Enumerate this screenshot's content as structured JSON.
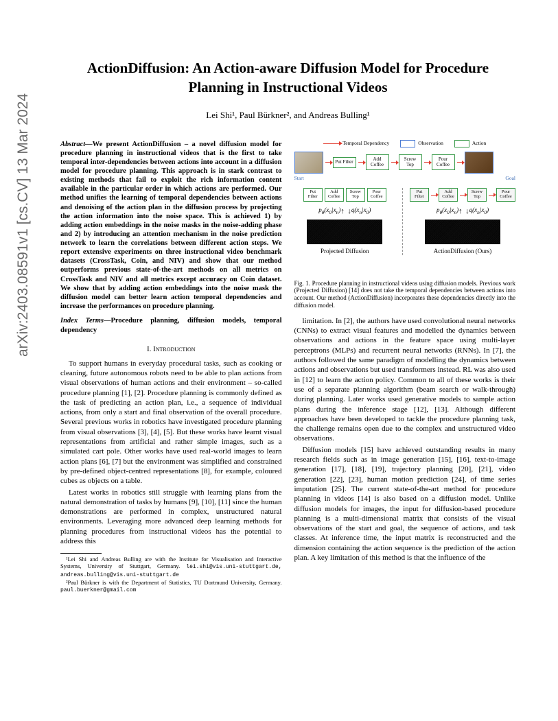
{
  "arxiv": "arXiv:2403.08591v1  [cs.CV]  13 Mar 2024",
  "title": "ActionDiffusion: An Action-aware Diffusion Model for Procedure Planning in Instructional Videos",
  "authors_html": "Lei Shi¹, Paul Bürkner², and Andreas Bulling¹",
  "abstract_lead": "Abstract—",
  "abstract": "We present ActionDiffusion – a novel diffusion model for procedure planning in instructional videos that is the first to take temporal inter-dependencies between actions into account in a diffusion model for procedure planning. This approach is in stark contrast to existing methods that fail to exploit the rich information content available in the particular order in which actions are performed. Our method unifies the learning of temporal dependencies between actions and denoising of the action plan in the diffusion process by projecting the action information into the noise space. This is achieved 1) by adding action embeddings in the noise masks in the noise-adding phase and 2) by introducing an attention mechanism in the noise prediction network to learn the correlations between different action steps. We report extensive experiments on three instructional video benchmark datasets (CrossTask, Coin, and NIV) and show that our method outperforms previous state-of-the-art methods on all metrics on CrossTask and NIV and all metrics except accuracy on Coin dataset. We show that by adding action embeddings into the noise mask the diffusion model can better learn action temporal dependencies and increase the performances on procedure planning.",
  "index_lead": "Index Terms—",
  "index_terms": "Procedure planning, diffusion models, temporal dependency",
  "section1": "I.  Introduction",
  "para1": "To support humans in everyday procedural tasks, such as cooking or cleaning, future autonomous robots need to be able to plan actions from visual observations of human actions and their environment – so-called procedure planning [1], [2]. Procedure planning is commonly defined as the task of predicting an action plan, i.e., a sequence of individual actions, from only a start and final observation of the overall procedure. Several previous works in robotics have investigated procedure planning from visual observations [3], [4], [5]. But these works have learnt visual representations from artificial and rather simple images, such as a simulated cart pole. Other works have used real-world images to learn action plans [6], [7] but the environment was simplified and constrained by pre-defined object-centred representations [8], for example, coloured cubes as objects on a table.",
  "para2": "Latest works in robotics still struggle with learning plans from the natural demonstration of tasks by humans [9], [10], [11] since the human demonstrations are performed in complex, unstructured natural environments. Leveraging more advanced deep learning methods for planning procedures from instructional videos has the potential to address this",
  "fn1": "¹Lei Shi and Andreas Bulling are with the Institute for Visualisation and Interactive Systems, University of Stuttgart, Germany. ",
  "fn1_email": "lei.shi@vis.uni-stuttgart.de, andreas.bulling@vis.uni-stuttgart.de",
  "fn2": "²Paul Bürkner is with the Department of Statistics, TU Dortmund University, Germany. ",
  "fn2_email": "paul.buerkner@gmail.com",
  "legend": {
    "temporal": "Temporal Dependency",
    "observation": "Observation",
    "action": "Action"
  },
  "actions": [
    "Put Filter",
    "Add Coffee",
    "Screw Top",
    "Pour Coffee"
  ],
  "start": "Start",
  "goal": "Goal",
  "math_left": "p_θ(x₀|xₙ)↑  ↓q(xₙ|x₀)",
  "math_right": "p_θ(x₀|xₙ)↑  ↓q(xₙ|x₀)",
  "proj_label": "Projected Diffusion",
  "ours_label": "ActionDiffusion (Ours)",
  "figcaption": "Fig. 1.   Procedure planning in instructional videos using diffusion models. Previous work (Projected Diffusion) [14] does not take the temporal dependencies between actions into account. Our method (ActionDiffusion) incorporates these dependencies directly into the diffusion model.",
  "rcol_p1": "limitation. In [2], the authors have used convolutional neural networks (CNNs) to extract visual features and modelled the dynamics between observations and actions in the feature space using multi-layer perceptrons (MLPs) and recurrent neural networks (RNNs). In [7], the authors followed the same paradigm of modelling the dynamics between actions and observations but used transformers instead. RL was also used in [12] to learn the action policy. Common to all of these works is their use of a separate planning algorithm (beam search or walk-through) during planning. Later works used generative models to sample action plans during the inference stage [12], [13]. Although different approaches have been developed to tackle the procedure planning task, the challenge remains open due to the complex and unstructured video observations.",
  "rcol_p2": "Diffusion models [15] have achieved outstanding results in many research fields such as in image generation [15], [16], text-to-image generation [17], [18], [19], trajectory planning [20], [21], video generation [22], [23], human motion prediction [24], of time series imputation [25]. The current state-of-the-art method for procedure planning in videos [14] is also based on a diffusion model. Unlike diffusion models for images, the input for diffusion-based procedure planning is a multi-dimensional matrix that consists of the visual observations of the start and goal, the sequence of actions, and task classes. At inference time, the input matrix is reconstructed and the dimension containing the action sequence is the prediction of the action plan. A key limitation of this method is that the influence of the"
}
